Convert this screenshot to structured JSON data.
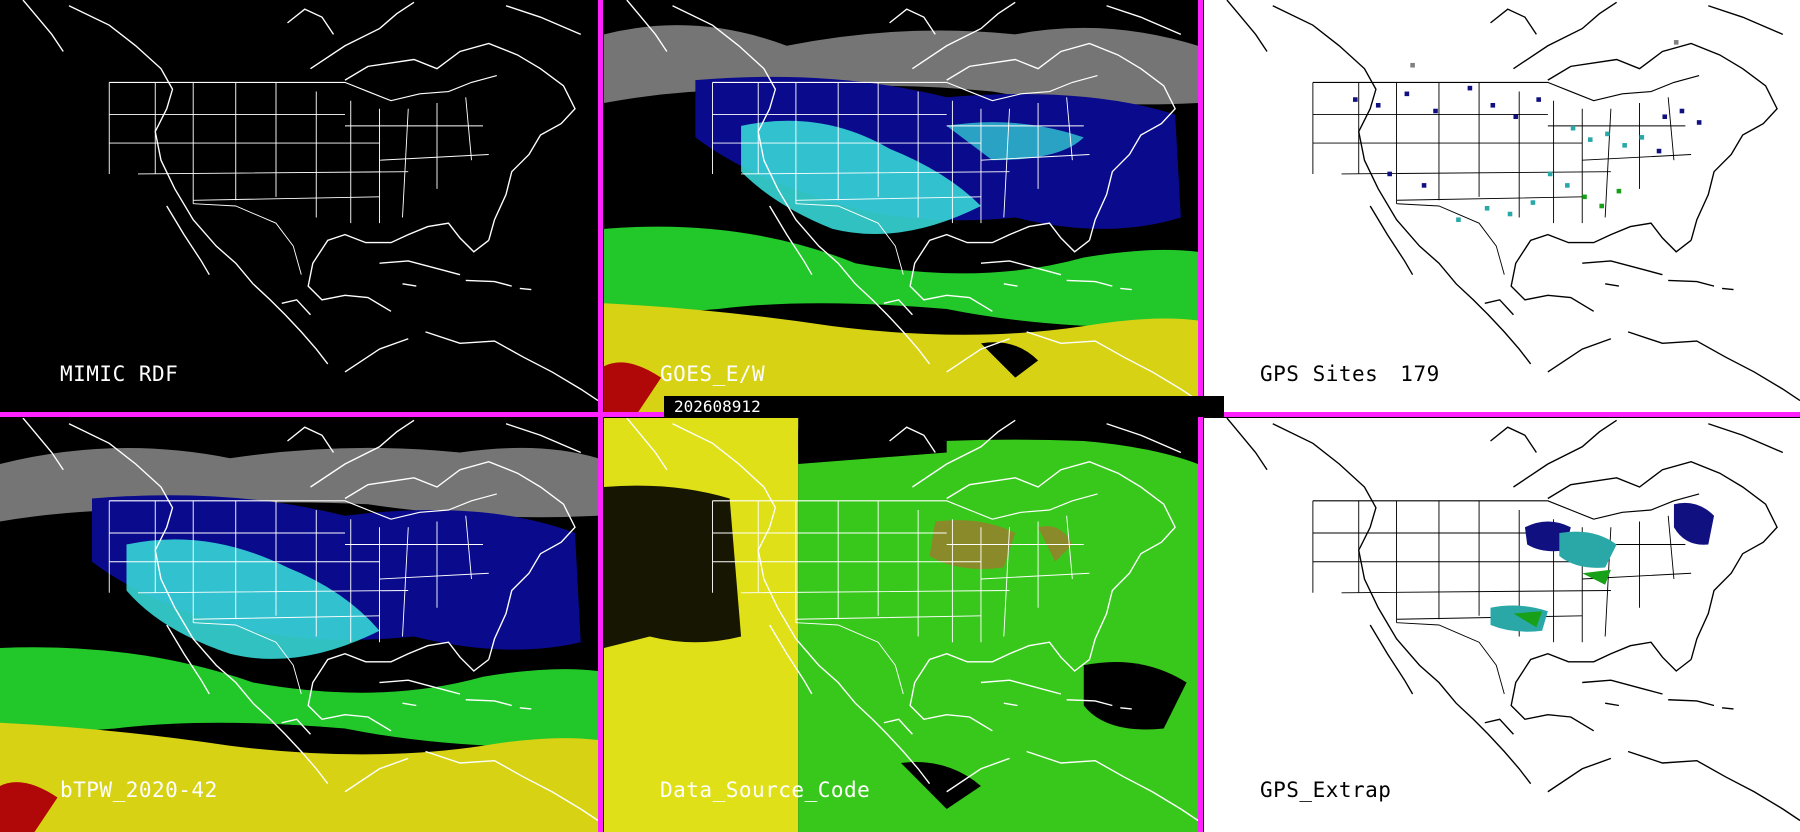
{
  "timestamp": "202608912",
  "panels": {
    "mimic_rdf": {
      "label": "MIMIC RDF"
    },
    "goes_ew": {
      "label": "GOES_E/W"
    },
    "gps_sites": {
      "label": "GPS Sites",
      "count": "179"
    },
    "btpw": {
      "label": "bTPW_2020-42"
    },
    "data_source": {
      "label": "Data_Source_Code"
    },
    "gps_extrap": {
      "label": "GPS_Extrap"
    }
  },
  "colors": {
    "divider": "#ff22ff",
    "background_dark": "#000000",
    "background_light": "#ffffff",
    "tpw_low_blue": "#0a0a8c",
    "tpw_cyan": "#36d6d6",
    "tpw_green": "#22c82a",
    "tpw_yellow": "#d8d214",
    "tpw_red": "#b00808",
    "source_yellow": "#e0e018",
    "source_green": "#38c81c",
    "source_olive": "#8a8a2a",
    "gps_navy": "#101080",
    "gps_teal": "#2aa8a8",
    "gps_green": "#18a018"
  }
}
